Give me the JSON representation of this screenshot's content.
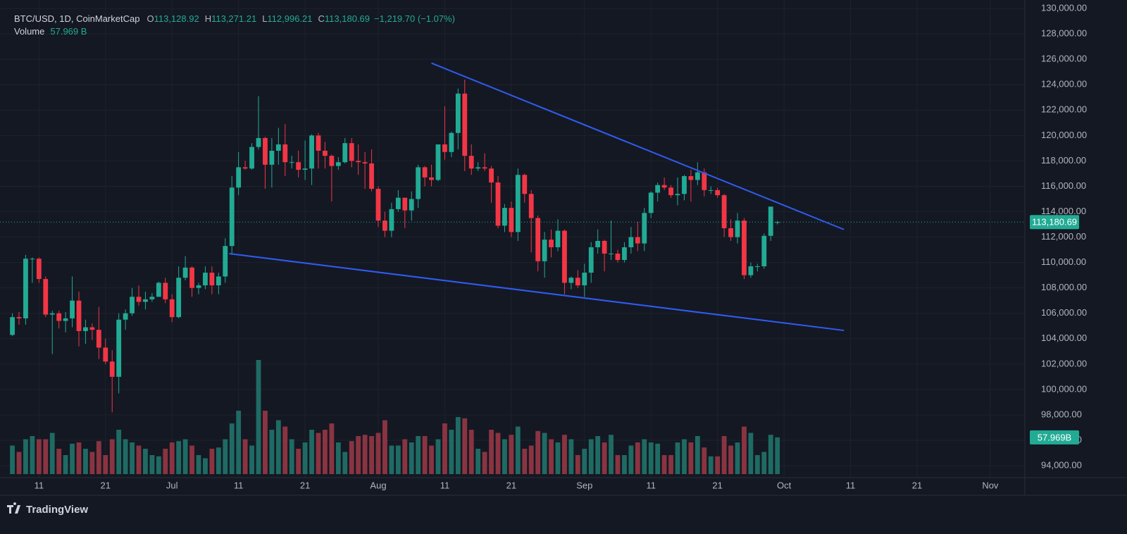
{
  "header": {
    "symbol": "BTC/USD, 1D, CoinMarketCap",
    "o_label": "O",
    "open": "113,128.92",
    "h_label": "H",
    "high": "113,271.21",
    "l_label": "L",
    "low": "112,996.21",
    "c_label": "C",
    "close": "113,180.69",
    "change": "−1,219.70 (−1.07%)",
    "volume_label": "Volume",
    "volume": "57.969 B"
  },
  "footer": {
    "brand": "TradingView"
  },
  "chart_data": {
    "type": "candlestick",
    "up_color": "#22ab94",
    "down_color": "#f23645",
    "up_volume_color": "#1f6b64",
    "down_volume_color": "#8a3441",
    "grid": true,
    "xlim": [
      5.2,
      158.2
    ],
    "ylim": [
      93060,
      130670
    ],
    "xticks": [
      {
        "value": 10,
        "label": "11"
      },
      {
        "value": 20,
        "label": "21"
      },
      {
        "value": 30,
        "label": "Jul"
      },
      {
        "value": 40,
        "label": "11"
      },
      {
        "value": 50,
        "label": "21"
      },
      {
        "value": 61,
        "label": "Aug"
      },
      {
        "value": 71,
        "label": "11"
      },
      {
        "value": 81,
        "label": "21"
      },
      {
        "value": 92,
        "label": "Sep"
      },
      {
        "value": 102,
        "label": "11"
      },
      {
        "value": 112,
        "label": "21"
      },
      {
        "value": 122,
        "label": "Oct"
      },
      {
        "value": 132,
        "label": "11"
      },
      {
        "value": 142,
        "label": "21"
      },
      {
        "value": 153,
        "label": "Nov"
      }
    ],
    "yticks": [
      {
        "value": 94000,
        "label": "94,000.00"
      },
      {
        "value": 96000,
        "label": "96,000.00"
      },
      {
        "value": 98000,
        "label": "98,000.00"
      },
      {
        "value": 100000,
        "label": "100,000.00"
      },
      {
        "value": 102000,
        "label": "102,000.00"
      },
      {
        "value": 104000,
        "label": "104,000.00"
      },
      {
        "value": 106000,
        "label": "106,000.00"
      },
      {
        "value": 108000,
        "label": "108,000.00"
      },
      {
        "value": 110000,
        "label": "110,000.00"
      },
      {
        "value": 112000,
        "label": "112,000.00"
      },
      {
        "value": 114000,
        "label": "114,000.00"
      },
      {
        "value": 116000,
        "label": "116,000.00"
      },
      {
        "value": 118000,
        "label": "118,000.00"
      },
      {
        "value": 120000,
        "label": "120,000.00"
      },
      {
        "value": 122000,
        "label": "122,000.00"
      },
      {
        "value": 124000,
        "label": "124,000.00"
      },
      {
        "value": 126000,
        "label": "126,000.00"
      },
      {
        "value": 128000,
        "label": "128,000.00"
      },
      {
        "value": 130000,
        "label": "130,000.00"
      }
    ],
    "x": [
      6,
      7,
      8,
      9,
      10,
      11,
      12,
      13,
      14,
      15,
      16,
      17,
      18,
      19,
      20,
      21,
      22,
      23,
      24,
      25,
      26,
      27,
      28,
      29,
      30,
      31,
      32,
      33,
      34,
      35,
      36,
      37,
      38,
      39,
      40,
      41,
      42,
      43,
      44,
      45,
      46,
      47,
      48,
      49,
      50,
      51,
      52,
      53,
      54,
      55,
      56,
      57,
      58,
      59,
      60,
      61,
      62,
      63,
      64,
      65,
      66,
      67,
      68,
      69,
      70,
      71,
      72,
      73,
      74,
      75,
      76,
      77,
      78,
      79,
      80,
      81,
      82,
      83,
      84,
      85,
      86,
      87,
      88,
      89,
      90,
      91,
      92,
      93,
      94,
      95,
      96,
      97,
      98,
      99,
      100,
      101,
      102,
      103,
      104,
      105,
      106,
      107,
      108,
      109,
      110,
      111,
      112,
      113,
      114,
      115,
      116,
      117,
      118,
      119,
      120,
      121
    ],
    "open": [
      104300,
      105700,
      105600,
      110300,
      110300,
      108700,
      105900,
      106000,
      105400,
      105600,
      107000,
      104600,
      104900,
      104700,
      103300,
      102200,
      101000,
      105500,
      106000,
      107300,
      106900,
      107100,
      107300,
      108400,
      107100,
      105700,
      108800,
      109600,
      108000,
      108200,
      109200,
      108200,
      108900,
      111300,
      115900,
      117500,
      117400,
      119100,
      119800,
      117700,
      118800,
      119300,
      117900,
      117900,
      117300,
      117400,
      120000,
      118800,
      118400,
      117600,
      117900,
      119400,
      118000,
      117900,
      117800,
      115800,
      113300,
      112500,
      114200,
      115100,
      114100,
      115000,
      117500,
      116700,
      116500,
      119300,
      118700,
      120200,
      123300,
      118400,
      117400,
      117500,
      117400,
      116300,
      112900,
      114300,
      112400,
      116900,
      115400,
      113500,
      110100,
      111800,
      111200,
      112500,
      108400,
      108800,
      108200,
      109200,
      111200,
      111700,
      110700,
      110700,
      110200,
      111200,
      112000,
      111500,
      113900,
      115500,
      116100,
      115900,
      115300,
      115400,
      116800,
      116500,
      117100,
      115700,
      115700,
      115300,
      112700,
      112000,
      113300,
      109000,
      109700,
      109700,
      112100,
      113128.92
    ],
    "high": [
      106000,
      106100,
      110600,
      110400,
      110400,
      108900,
      106200,
      106200,
      106100,
      108900,
      107700,
      105500,
      105200,
      106500,
      104000,
      103100,
      106000,
      106300,
      108000,
      108200,
      107700,
      107600,
      108500,
      108800,
      107500,
      109700,
      110500,
      109700,
      108400,
      109700,
      109700,
      109200,
      111900,
      116800,
      118700,
      118000,
      119400,
      123100,
      119900,
      119800,
      120600,
      120900,
      118400,
      118800,
      119600,
      120100,
      120200,
      119500,
      118500,
      118300,
      119800,
      119800,
      119300,
      118700,
      118900,
      116000,
      114000,
      114700,
      115700,
      115100,
      115600,
      117700,
      117600,
      117700,
      119300,
      122300,
      120300,
      123700,
      124400,
      119300,
      117900,
      118600,
      117600,
      116800,
      114600,
      114800,
      117400,
      117000,
      115700,
      113700,
      112400,
      112600,
      113400,
      112600,
      108900,
      109400,
      109900,
      111600,
      112600,
      111800,
      113300,
      111000,
      111600,
      112800,
      113200,
      114300,
      115600,
      116300,
      116700,
      116100,
      116700,
      116900,
      117300,
      117900,
      117400,
      116000,
      115900,
      115400,
      113400,
      113900,
      113500,
      110000,
      109900,
      112300,
      114400,
      113271.21
    ],
    "low": [
      104200,
      105100,
      105100,
      108400,
      108400,
      105700,
      102800,
      104800,
      104500,
      104900,
      103400,
      103600,
      103900,
      102400,
      102000,
      98200,
      99700,
      104700,
      105800,
      106600,
      106300,
      106900,
      107300,
      106800,
      105300,
      105600,
      108600,
      107300,
      107500,
      107900,
      107500,
      107500,
      108400,
      110600,
      115300,
      117300,
      117300,
      118900,
      115800,
      115900,
      117700,
      116800,
      117400,
      116700,
      116500,
      116100,
      117400,
      117400,
      114800,
      117300,
      117800,
      117500,
      116900,
      115800,
      115600,
      112800,
      112000,
      112000,
      114000,
      112700,
      113300,
      114300,
      116000,
      116000,
      116400,
      118100,
      118300,
      118900,
      117200,
      116900,
      117200,
      117200,
      114700,
      112700,
      112400,
      112000,
      111700,
      114700,
      110800,
      109300,
      108800,
      110400,
      110900,
      107500,
      107900,
      108000,
      107300,
      108400,
      110700,
      109300,
      110200,
      110000,
      110000,
      110700,
      110900,
      110900,
      113500,
      114800,
      115700,
      115100,
      114500,
      114900,
      114800,
      116100,
      115200,
      115400,
      115100,
      112000,
      111700,
      111500,
      108700,
      108800,
      109300,
      109500,
      111700,
      112996.21
    ],
    "close": [
      105700,
      105600,
      110300,
      110300,
      108700,
      105900,
      106000,
      105400,
      105600,
      107000,
      104600,
      104900,
      104700,
      103300,
      102200,
      101000,
      105500,
      106000,
      107300,
      106900,
      107100,
      107300,
      108400,
      107100,
      105700,
      108800,
      109600,
      108000,
      108200,
      109200,
      108200,
      108900,
      111300,
      115900,
      117500,
      117400,
      119100,
      119800,
      117700,
      118800,
      119300,
      117900,
      117900,
      117300,
      117400,
      120000,
      118800,
      118400,
      117600,
      117900,
      119400,
      118000,
      117900,
      117800,
      115800,
      113300,
      112500,
      114200,
      115100,
      114100,
      115000,
      117500,
      116700,
      116500,
      119300,
      118700,
      120200,
      123300,
      118400,
      117400,
      117500,
      117400,
      116300,
      112900,
      114300,
      112400,
      116900,
      115400,
      113500,
      110100,
      111800,
      111200,
      112500,
      108400,
      108800,
      108200,
      109200,
      111200,
      111700,
      110700,
      110700,
      110200,
      111200,
      112000,
      111500,
      113900,
      115500,
      116100,
      115900,
      115300,
      115400,
      116800,
      116500,
      117100,
      115700,
      115700,
      115300,
      112700,
      112000,
      113300,
      109000,
      109700,
      109700,
      112100,
      114400,
      113180.69
    ],
    "price_tag": "113,180.69",
    "volume": {
      "values": [
        45,
        35,
        55,
        60,
        55,
        55,
        65,
        40,
        30,
        48,
        50,
        40,
        35,
        52,
        30,
        55,
        70,
        55,
        50,
        45,
        40,
        30,
        28,
        40,
        50,
        52,
        55,
        45,
        30,
        25,
        40,
        42,
        55,
        80,
        100,
        55,
        45,
        180,
        100,
        70,
        85,
        75,
        55,
        40,
        50,
        70,
        65,
        70,
        80,
        50,
        35,
        52,
        60,
        62,
        60,
        65,
        85,
        45,
        45,
        55,
        50,
        60,
        60,
        45,
        55,
        80,
        70,
        90,
        88,
        70,
        40,
        35,
        70,
        65,
        55,
        62,
        75,
        40,
        45,
        68,
        65,
        55,
        50,
        62,
        55,
        30,
        40,
        55,
        60,
        50,
        62,
        30,
        30,
        45,
        50,
        55,
        50,
        48,
        30,
        30,
        50,
        55,
        50,
        60,
        42,
        28,
        28,
        60,
        45,
        50,
        75,
        65,
        30,
        35,
        62,
        57.969
      ],
      "tag": "57.969B"
    },
    "trendlines": [
      {
        "color": "#2f5cf0",
        "points": [
          [
            69,
            125700
          ],
          [
            131,
            112600
          ]
        ]
      },
      {
        "color": "#2f5cf0",
        "points": [
          [
            38.6,
            110700
          ],
          [
            131,
            104650
          ]
        ]
      }
    ]
  }
}
